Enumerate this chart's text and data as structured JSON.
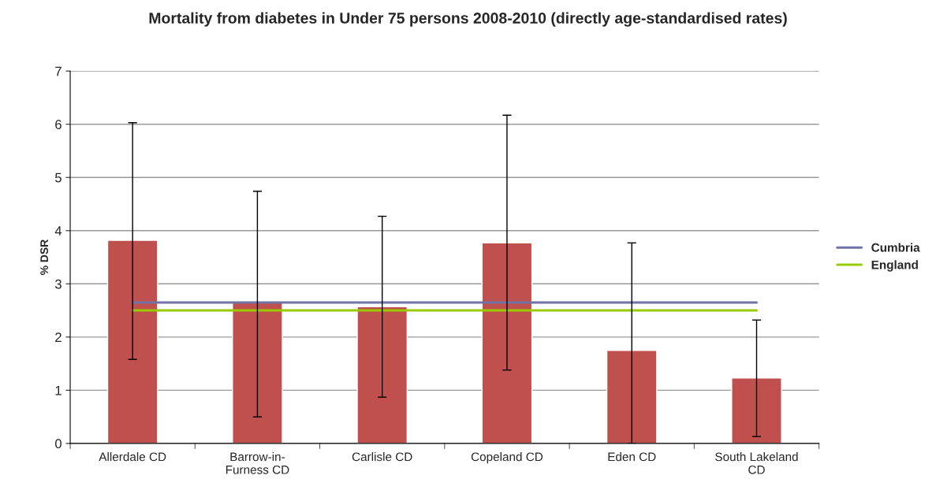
{
  "chart_data": {
    "type": "bar",
    "title": "Mortality from diabetes in Under 75 persons 2008-2010 (directly age-standardised rates)",
    "ylabel": "% DSR",
    "categories": [
      "Allerdale CD",
      "Barrow-in-Furness CD",
      "Carlisle CD",
      "Copeland CD",
      "Eden CD",
      "South Lakeland CD"
    ],
    "series": [
      {
        "color": "#c0504d",
        "values": [
          3.82,
          2.65,
          2.57,
          3.77,
          1.75,
          1.23
        ],
        "errors": [
          [
            1.58,
            6.03
          ],
          [
            0.5,
            4.74
          ],
          [
            0.87,
            4.27
          ],
          [
            1.38,
            6.17
          ],
          [
            0.0,
            3.77
          ],
          [
            0.13,
            2.32
          ]
        ]
      },
      {
        "type": "line",
        "name": "Cumbria",
        "color": "#7072a8",
        "values": [
          2.65,
          2.65,
          2.65,
          2.65,
          2.65,
          2.65
        ]
      },
      {
        "type": "line",
        "name": "England",
        "color": "#99cc00",
        "values": [
          2.5,
          2.5,
          2.5,
          2.5,
          2.5,
          2.5
        ]
      }
    ],
    "ylim": [
      0,
      7
    ],
    "yticks": [
      0,
      1,
      2,
      3,
      4,
      5,
      6,
      7
    ],
    "grid": "y",
    "legend": "right",
    "marker": "none",
    "line_style": "solid"
  }
}
